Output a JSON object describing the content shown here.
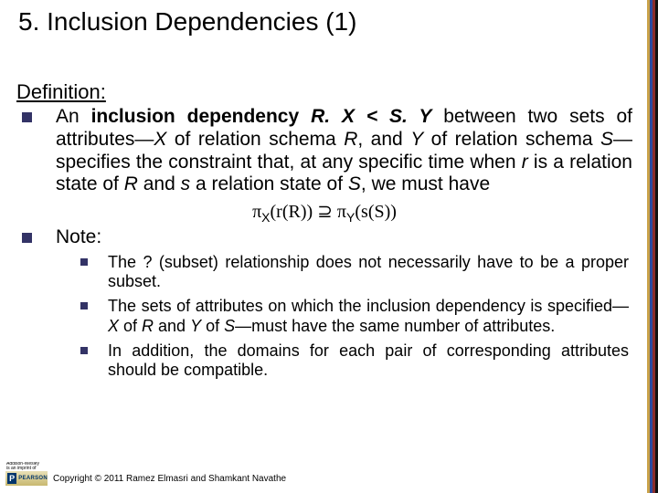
{
  "title": "5. Inclusion Dependencies (1)",
  "definition_label": "Definition:",
  "def_text_parts": {
    "pre": "An ",
    "bold": "inclusion dependency ",
    "post": " between two sets of attributes—",
    "x": "X",
    "mid1": " of relation schema ",
    "r1": "R",
    "mid2": ", and ",
    "y": "Y",
    "mid3": " of relation schema ",
    "s1": "S",
    "mid4": "—specifies the constraint that, at any specific time when ",
    "rlow": "r",
    "mid5": " is a relation state of ",
    "r2": "R",
    "mid6": " and ",
    "slow": "s",
    "mid7": " a relation state of ",
    "s2": "S",
    "mid8": ", we must have",
    "incl": "R. X < S. Y"
  },
  "formula": {
    "pi": "π",
    "subX": "X",
    "arg1": "(r(R)) ",
    "sup": "⊇",
    "space": " ",
    "subY": "Y",
    "arg2": "(s(S))"
  },
  "note_label": "Note:",
  "notes": [
    "The ? (subset) relationship does not necessarily have to be a proper subset.",
    "The sets of attributes on which the inclusion dependency is specified—X of R and Y of S—must have the same number of attributes.",
    "In addition, the domains for each pair of corresponding attributes should be compatible."
  ],
  "notes_rich": {
    "1_pre": "The sets of attributes on which the inclusion dependency is specified—",
    "1_x": "X",
    "1_m1": " of ",
    "1_r": "R",
    "1_m2": " and ",
    "1_y": "Y",
    "1_m3": " of ",
    "1_s": "S",
    "1_post": "—must have the same number of attributes."
  },
  "copyright": "Copyright © 2011 Ramez Elmasri and Shamkant Navathe",
  "logo": {
    "line1": "Addison-Wesley",
    "line2": "is an imprint of",
    "letter": "P",
    "brand": "PEARSON"
  },
  "colors": {
    "bullet": "#333366",
    "stripe1": "#c9a24a",
    "stripe2": "#2a4aa0",
    "stripe3": "#8a2d2d",
    "stripe4": "#111111"
  }
}
